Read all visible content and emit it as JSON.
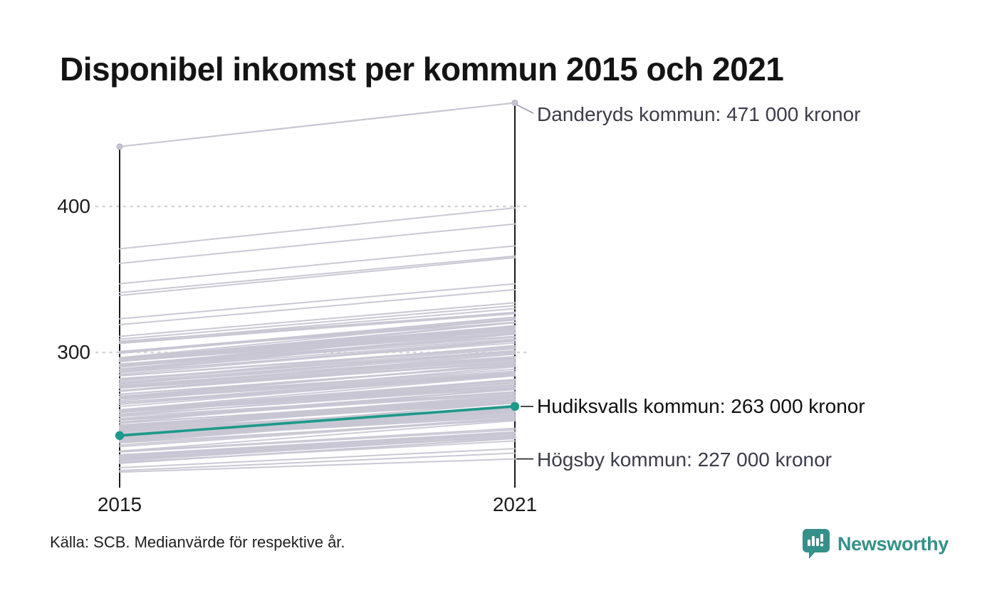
{
  "page": {
    "title": "Disponibel inkomst per kommun 2015 och 2021",
    "source_note": "Källa: SCB. Medianvärde för respektive år.",
    "brand_name": "Newsworthy"
  },
  "chart_data": {
    "type": "line",
    "subtype": "slopegraph",
    "title": "Disponibel inkomst per kommun 2015 och 2021",
    "x_categories": [
      "2015",
      "2021"
    ],
    "y_ticks": [
      {
        "value": 300,
        "label": "300"
      },
      {
        "value": 400,
        "label": "400"
      }
    ],
    "y_axis_unit": "tusen kronor",
    "grid": "dotted-horizontal",
    "series": [
      {
        "name": "Danderyds kommun",
        "values": [
          441,
          471
        ],
        "highlight": false,
        "label": "Danderyds kommun: 471 000 kronor"
      },
      {
        "name": "Hudiksvalls kommun",
        "values": [
          243,
          263
        ],
        "highlight": true,
        "label": "Hudiksvalls kommun: 263 000 kronor"
      },
      {
        "name": "Högsby kommun",
        "values": [
          218,
          227
        ],
        "highlight": false,
        "label": "Högsby kommun: 227 000 kronor"
      }
    ],
    "other_visible_lines": [
      [
        371,
        399
      ],
      [
        361,
        388
      ],
      [
        347,
        373
      ],
      [
        341,
        366
      ],
      [
        339,
        365
      ],
      [
        323,
        347
      ],
      [
        319,
        343
      ],
      [
        311,
        334
      ],
      [
        309,
        332
      ],
      [
        307,
        330
      ],
      [
        221,
        234
      ],
      [
        219,
        231
      ]
    ],
    "background_lines": {
      "description": "dense band of unlabeled municipality lines",
      "count": 160,
      "seed": 11,
      "v2015_bulk_range": [
        238,
        298
      ],
      "v2015_low_range": [
        224,
        260
      ],
      "v2015_high_range": [
        288,
        308
      ],
      "growth_range": [
        1.062,
        1.092
      ],
      "v2021_clamp": [
        230,
        331
      ]
    },
    "colors": {
      "line_gray": "#c8c6d3",
      "dot_gray": "#c7c5d3",
      "highlight_teal": "#1b998a",
      "axis_black": "#1b1b1b",
      "grid_gray": "#d4d4d4",
      "leader_gray": "#9a99a6",
      "leader_dark": "#2e2e2e",
      "brand_teal": "#35908a"
    }
  }
}
